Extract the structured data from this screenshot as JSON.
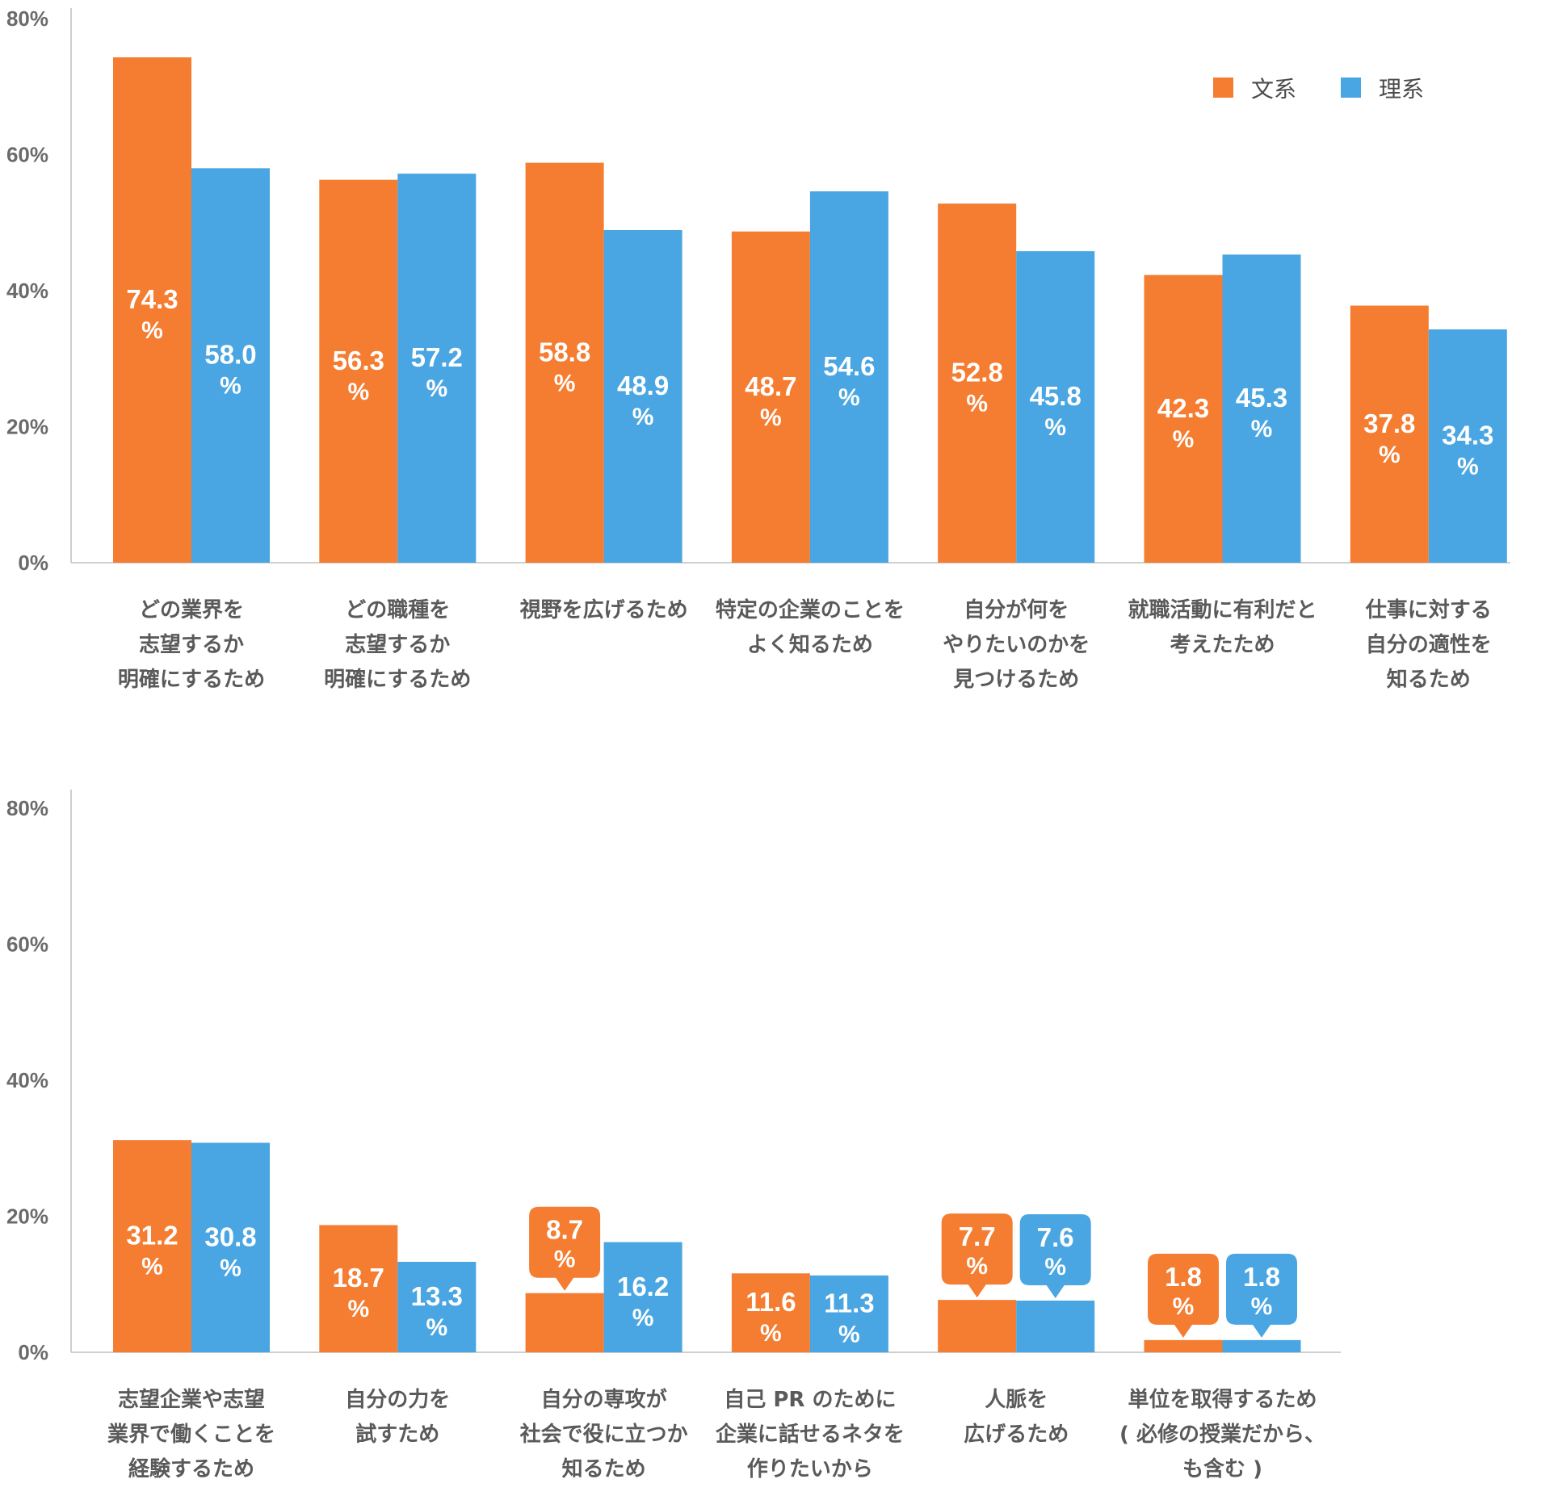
{
  "chart_data": [
    {
      "type": "bar",
      "y_ticks": [
        "0%",
        "20%",
        "40%",
        "60%",
        "80%"
      ],
      "ylim": [
        0,
        80
      ],
      "legend": {
        "position": "top-right",
        "entries": [
          "文系",
          "理系"
        ]
      },
      "unit": "%",
      "categories": [
        [
          "どの業界を",
          "志望するか",
          "明確にするため"
        ],
        [
          "どの職種を",
          "志望するか",
          "明確にするため"
        ],
        [
          "視野を広げるため"
        ],
        [
          "特定の企業のことを",
          "よく知るため"
        ],
        [
          "自分が何を",
          "やりたいのかを",
          "見つけるため"
        ],
        [
          "就職活動に有利だと",
          "考えたため"
        ],
        [
          "仕事に対する",
          "自分の適性を",
          "知るため"
        ]
      ],
      "series": [
        {
          "name": "文系",
          "color": "#f47d31",
          "values": [
            74.3,
            56.3,
            58.8,
            48.7,
            52.8,
            42.3,
            37.8
          ],
          "labels": [
            "74.3",
            "56.3",
            "58.8",
            "48.7",
            "52.8",
            "42.3",
            "37.8"
          ]
        },
        {
          "name": "理系",
          "color": "#49a6e2",
          "values": [
            58.0,
            57.2,
            48.9,
            54.6,
            45.8,
            45.3,
            34.3
          ],
          "labels": [
            "58.0",
            "57.2",
            "48.9",
            "54.6",
            "45.8",
            "45.3",
            "34.3"
          ]
        }
      ]
    },
    {
      "type": "bar",
      "y_ticks": [
        "0%",
        "20%",
        "40%",
        "60%",
        "80%"
      ],
      "ylim": [
        0,
        80
      ],
      "unit": "%",
      "categories": [
        [
          "志望企業や志望",
          "業界で働くことを",
          "経験するため"
        ],
        [
          "自分の力を",
          "試すため"
        ],
        [
          "自分の専攻が",
          "社会で役に立つか",
          "知るため"
        ],
        [
          "自己 PR のために",
          "企業に話せるネタを",
          "作りたいから"
        ],
        [
          "人脈を",
          "広げるため"
        ],
        [
          "単位を取得するため",
          "( 必修の授業だから、",
          "も含む )"
        ]
      ],
      "series": [
        {
          "name": "文系",
          "color": "#f47d31",
          "values": [
            31.2,
            18.7,
            8.7,
            11.6,
            7.7,
            1.8
          ],
          "labels": [
            "31.2",
            "18.7",
            "8.7",
            "11.6",
            "7.7",
            "1.8"
          ]
        },
        {
          "name": "理系",
          "color": "#49a6e2",
          "values": [
            30.8,
            13.3,
            16.2,
            11.3,
            7.6,
            1.8
          ],
          "labels": [
            "30.8",
            "13.3",
            "16.2",
            "11.3",
            "7.6",
            "1.8"
          ]
        }
      ]
    }
  ]
}
